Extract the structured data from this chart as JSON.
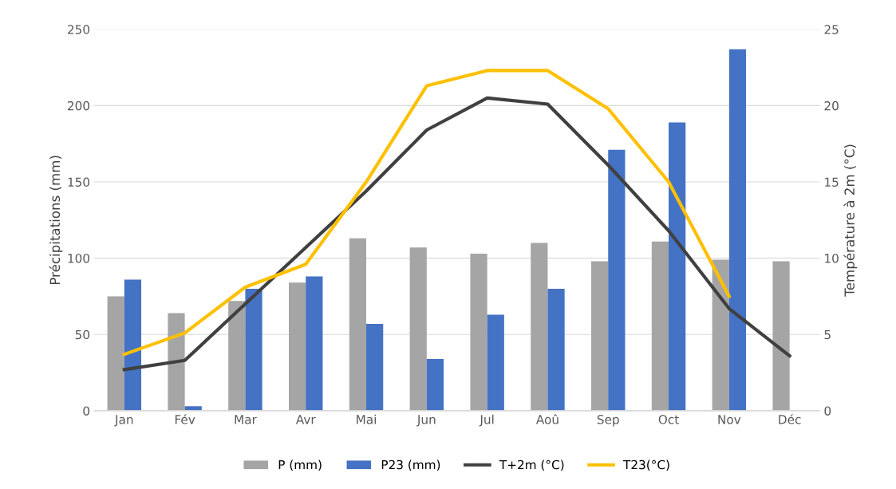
{
  "chart_data": {
    "type": "bar",
    "categories": [
      "Jan",
      "Fév",
      "Mar",
      "Avr",
      "Mai",
      "Jun",
      "Jul",
      "Aoû",
      "Sep",
      "Oct",
      "Nov",
      "Déc"
    ],
    "ylabel": "Précipitations (mm)",
    "y2label": "Température à 2m (°C)",
    "ylim": [
      0,
      250
    ],
    "yticks": [
      0,
      50,
      100,
      150,
      200,
      250
    ],
    "y2lim": [
      0,
      25
    ],
    "y2ticks": [
      0,
      5,
      10,
      15,
      20,
      25
    ],
    "grid": "y",
    "legend": "bottom",
    "series": [
      {
        "name": "P (mm)",
        "color": "#a5a5a5",
        "values": [
          75,
          64,
          72,
          84,
          113,
          107,
          103,
          110,
          98,
          111,
          99,
          98
        ]
      },
      {
        "name": "P23 (mm)",
        "color": "#4472c4",
        "values": [
          86,
          3,
          80,
          88,
          57,
          34,
          63,
          80,
          171,
          189,
          237,
          null
        ]
      },
      {
        "name": "T+2m (°C)",
        "type": "line",
        "axis": "y2",
        "color": "#404040",
        "values": [
          2.7,
          3.3,
          7.0,
          10.7,
          14.4,
          18.4,
          20.5,
          20.1,
          16.1,
          11.8,
          6.7,
          3.6
        ]
      },
      {
        "name": "T23(°C)",
        "type": "line",
        "axis": "y2",
        "color": "#ffc000",
        "values": [
          3.7,
          5.1,
          8.1,
          9.6,
          15.0,
          21.3,
          22.3,
          22.3,
          19.8,
          15.0,
          7.5,
          null
        ]
      }
    ]
  }
}
